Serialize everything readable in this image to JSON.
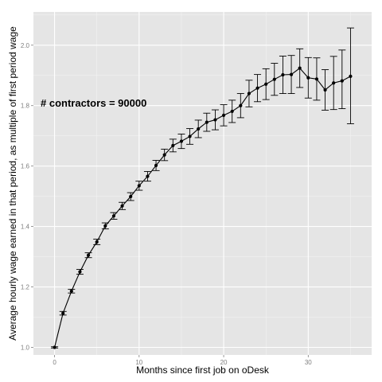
{
  "chart_data": {
    "type": "line",
    "xlabel": "Months since first job on oDesk",
    "ylabel": "Average hourly wage earned in that period, as multiple of first period wage",
    "annotation": "# contractors = 90000",
    "xlim": [
      -2.5,
      37.5
    ],
    "ylim": [
      0.975,
      2.11
    ],
    "x_ticks": [
      0,
      10,
      20,
      30
    ],
    "x_tick_labels": [
      "0",
      "10",
      "20",
      "30"
    ],
    "y_ticks": [
      1.0,
      1.2,
      1.4,
      1.6,
      1.8,
      2.0
    ],
    "y_tick_labels": [
      "1.0",
      "1.2",
      "1.4",
      "1.6",
      "1.8",
      "2.0"
    ],
    "grid": true,
    "background": "#e5e5e5",
    "line_color": "#000000",
    "series": [
      {
        "x": [
          0,
          1,
          2,
          3,
          4,
          5,
          6,
          7,
          8,
          9,
          10,
          11,
          12,
          13,
          14,
          15,
          16,
          17,
          18,
          19,
          20,
          21,
          22,
          23,
          24,
          25,
          26,
          27,
          28,
          29,
          30,
          31,
          32,
          33,
          34,
          35
        ],
        "y": [
          1.0,
          1.113,
          1.186,
          1.25,
          1.305,
          1.349,
          1.402,
          1.435,
          1.468,
          1.499,
          1.535,
          1.566,
          1.602,
          1.637,
          1.668,
          1.682,
          1.698,
          1.723,
          1.745,
          1.753,
          1.768,
          1.781,
          1.8,
          1.84,
          1.858,
          1.871,
          1.887,
          1.902,
          1.903,
          1.924,
          1.892,
          1.888,
          1.852,
          1.875,
          1.882,
          1.897
        ],
        "err_low": [
          0.998,
          1.107,
          1.18,
          1.242,
          1.297,
          1.34,
          1.392,
          1.424,
          1.456,
          1.486,
          1.52,
          1.55,
          1.585,
          1.618,
          1.647,
          1.658,
          1.672,
          1.694,
          1.715,
          1.72,
          1.733,
          1.744,
          1.76,
          1.796,
          1.813,
          1.82,
          1.834,
          1.84,
          1.84,
          1.86,
          1.825,
          1.818,
          1.785,
          1.787,
          1.79,
          1.74
        ],
        "err_high": [
          1.002,
          1.119,
          1.192,
          1.258,
          1.313,
          1.358,
          1.412,
          1.446,
          1.48,
          1.512,
          1.55,
          1.582,
          1.619,
          1.656,
          1.689,
          1.706,
          1.724,
          1.752,
          1.775,
          1.786,
          1.803,
          1.818,
          1.84,
          1.884,
          1.903,
          1.922,
          1.94,
          1.964,
          1.966,
          1.988,
          1.959,
          1.958,
          1.919,
          1.963,
          1.984,
          2.057
        ]
      }
    ]
  }
}
